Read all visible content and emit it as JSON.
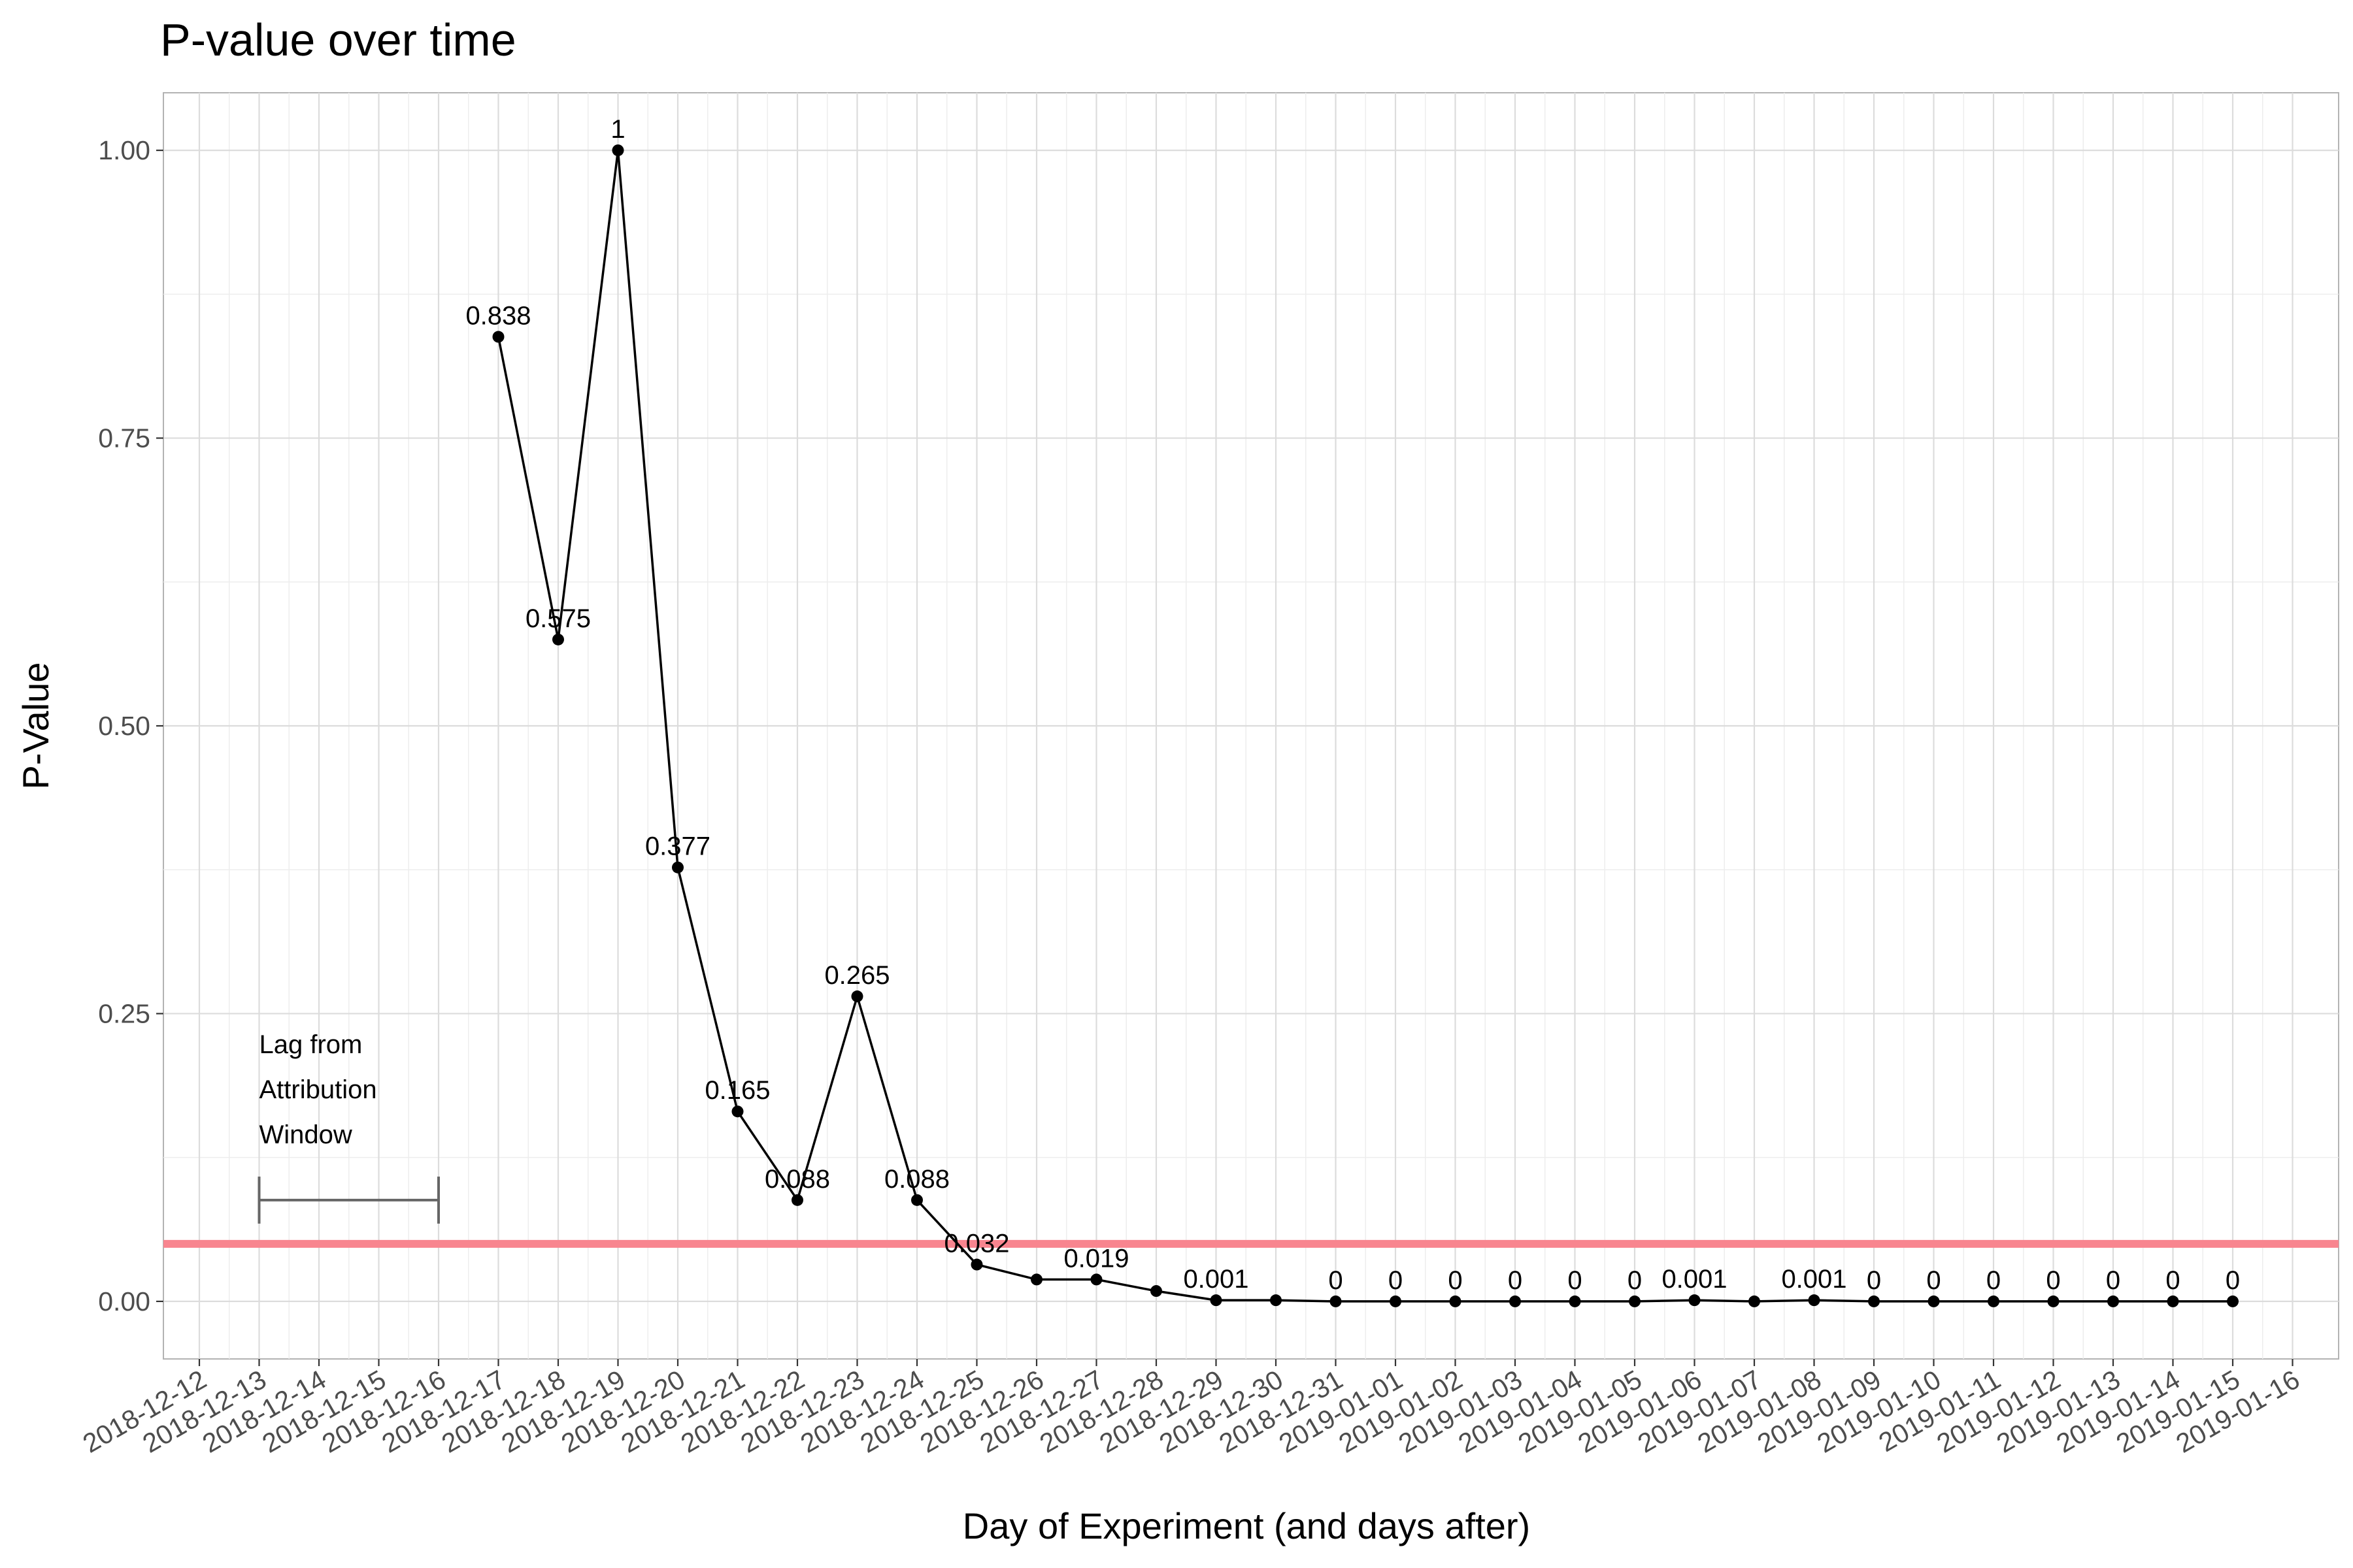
{
  "chart_data": {
    "type": "line",
    "title": "P-value over time",
    "xlabel": "Day of Experiment (and days after)",
    "ylabel": "P-Value",
    "ylim": [
      -0.05,
      1.05
    ],
    "y_ticks": [
      0,
      0.25,
      0.5,
      0.75,
      1.0
    ],
    "y_tick_labels": [
      "0.00",
      "0.25",
      "0.50",
      "0.75",
      "1.00"
    ],
    "grid": true,
    "x_tick_labels": [
      "2018-12-12",
      "2018-12-13",
      "2018-12-14",
      "2018-12-15",
      "2018-12-16",
      "2018-12-17",
      "2018-12-18",
      "2018-12-19",
      "2018-12-20",
      "2018-12-21",
      "2018-12-22",
      "2018-12-23",
      "2018-12-24",
      "2018-12-25",
      "2018-12-26",
      "2018-12-27",
      "2018-12-28",
      "2018-12-29",
      "2018-12-30",
      "2018-12-31",
      "2019-01-01",
      "2019-01-02",
      "2019-01-03",
      "2019-01-04",
      "2019-01-05",
      "2019-01-06",
      "2019-01-07",
      "2019-01-08",
      "2019-01-09",
      "2019-01-10",
      "2019-01-11",
      "2019-01-12",
      "2019-01-13",
      "2019-01-14",
      "2019-01-15",
      "2019-01-16"
    ],
    "series": [
      {
        "color": "#000000",
        "points": [
          {
            "x": "2018-12-17",
            "y": 0.838,
            "label": "0.838"
          },
          {
            "x": "2018-12-18",
            "y": 0.575,
            "label": "0.575"
          },
          {
            "x": "2018-12-19",
            "y": 1.0,
            "label": "1"
          },
          {
            "x": "2018-12-20",
            "y": 0.377,
            "label": "0.377"
          },
          {
            "x": "2018-12-21",
            "y": 0.165,
            "label": "0.165"
          },
          {
            "x": "2018-12-22",
            "y": 0.088,
            "label": "0.088"
          },
          {
            "x": "2018-12-23",
            "y": 0.265,
            "label": "0.265"
          },
          {
            "x": "2018-12-24",
            "y": 0.088,
            "label": "0.088"
          },
          {
            "x": "2018-12-25",
            "y": 0.032,
            "label": "0.032"
          },
          {
            "x": "2018-12-26",
            "y": 0.019,
            "label": ""
          },
          {
            "x": "2018-12-27",
            "y": 0.019,
            "label": "0.019"
          },
          {
            "x": "2018-12-28",
            "y": 0.009,
            "label": ""
          },
          {
            "x": "2018-12-29",
            "y": 0.001,
            "label": "0.001"
          },
          {
            "x": "2018-12-30",
            "y": 0.001,
            "label": ""
          },
          {
            "x": "2018-12-31",
            "y": 0.0,
            "label": "0"
          },
          {
            "x": "2019-01-01",
            "y": 0.0,
            "label": "0"
          },
          {
            "x": "2019-01-02",
            "y": 0.0,
            "label": "0"
          },
          {
            "x": "2019-01-03",
            "y": 0.0,
            "label": "0"
          },
          {
            "x": "2019-01-04",
            "y": 0.0,
            "label": "0"
          },
          {
            "x": "2019-01-05",
            "y": 0.0,
            "label": "0"
          },
          {
            "x": "2019-01-06",
            "y": 0.001,
            "label": "0.001"
          },
          {
            "x": "2019-01-07",
            "y": 0.0,
            "label": ""
          },
          {
            "x": "2019-01-08",
            "y": 0.001,
            "label": "0.001"
          },
          {
            "x": "2019-01-09",
            "y": 0.0,
            "label": "0"
          },
          {
            "x": "2019-01-10",
            "y": 0.0,
            "label": "0"
          },
          {
            "x": "2019-01-11",
            "y": 0.0,
            "label": "0"
          },
          {
            "x": "2019-01-12",
            "y": 0.0,
            "label": "0"
          },
          {
            "x": "2019-01-13",
            "y": 0.0,
            "label": "0"
          },
          {
            "x": "2019-01-14",
            "y": 0.0,
            "label": "0"
          },
          {
            "x": "2019-01-15",
            "y": 0.0,
            "label": "0"
          }
        ]
      }
    ],
    "threshold": {
      "y": 0.05,
      "color": "#f8858f"
    },
    "annotation": {
      "lines": [
        "Lag from",
        "Attribution",
        "Window"
      ],
      "x_start": "2018-12-13",
      "x_end": "2018-12-16",
      "y": 0.088,
      "color": "#666666"
    }
  }
}
